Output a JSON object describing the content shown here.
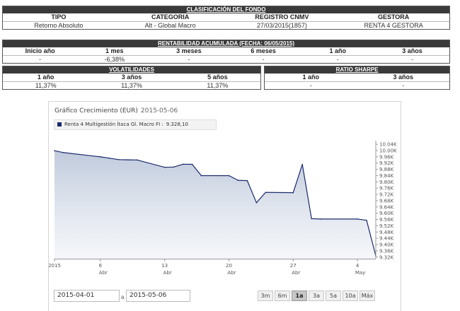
{
  "clasificacion": {
    "title": "CLASIFICACIÓN DEL FONDO",
    "headers": [
      "TIPO",
      "CATEGORIA",
      "REGISTRO CNMV",
      "GESTORA"
    ],
    "values": [
      "Retorno Absoluto",
      "Alt - Global Macro",
      "27/03/2015(1857)",
      "RENTA 4 GESTORA"
    ]
  },
  "rentabilidad": {
    "title": "RENTABILIDAD ACUMULADA (FECHA: 06/05/2015)",
    "headers": [
      "Inicio año",
      "1 mes",
      "3 meses",
      "6 meses",
      "1 año",
      "3 años"
    ],
    "values": [
      "-",
      "-6,38%",
      "-",
      "-",
      "-",
      "-"
    ]
  },
  "volatilidades": {
    "title": "VOLATILIDADES",
    "headers": [
      "1 año",
      "3 años",
      "5 años"
    ],
    "values": [
      "11,37%",
      "11,37%",
      "11,37%"
    ]
  },
  "sharpe": {
    "title": "RATIO SHARPE",
    "headers": [
      "1 año",
      "3 años"
    ],
    "values": [
      "-",
      "-"
    ]
  },
  "chart": {
    "title": "Gráfico Crecimiento (EUR)",
    "date": "2015-05-06",
    "legend_name": "Renta 4 Multigestión Ítaca Gl. Macro FI :",
    "legend_value": "9.328,10",
    "series_color": "#1a2a6c",
    "fill_color": "#b8c4d8"
  },
  "chart_data": {
    "type": "area",
    "x": [
      "2015-04-01",
      "2015-04-02",
      "2015-04-06",
      "2015-04-07",
      "2015-04-08",
      "2015-04-09",
      "2015-04-10",
      "2015-04-13",
      "2015-04-14",
      "2015-04-15",
      "2015-04-16",
      "2015-04-17",
      "2015-04-20",
      "2015-04-21",
      "2015-04-22",
      "2015-04-23",
      "2015-04-24",
      "2015-04-27",
      "2015-04-28",
      "2015-04-29",
      "2015-04-30",
      "2015-05-04",
      "2015-05-05",
      "2015-05-06"
    ],
    "y": [
      9999,
      9987,
      9960,
      9951,
      9942,
      9941,
      9940,
      9893,
      9895,
      9913,
      9912,
      9840,
      9840,
      9810,
      9808,
      9667,
      9733,
      9731,
      9912,
      9565,
      9563,
      9563,
      9555,
      9328
    ],
    "y_tick_labels": [
      "10.04K",
      "10.00K",
      "9.96K",
      "9.92K",
      "9.88K",
      "9.84K",
      "9.80K",
      "9.76K",
      "9.72K",
      "9.68K",
      "9.64K",
      "9.60K",
      "9.56K",
      "9.52K",
      "9.48K",
      "9.44K",
      "9.40K",
      "9.36K",
      "9.32K"
    ],
    "y_ticks": [
      10040,
      10000,
      9960,
      9920,
      9880,
      9840,
      9800,
      9760,
      9720,
      9680,
      9640,
      9600,
      9560,
      9520,
      9480,
      9440,
      9400,
      9360,
      9320
    ],
    "ylim": [
      9310,
      10045
    ],
    "x_ticks": [
      {
        "date": "2015-04-01",
        "label": "2015",
        "sub": ""
      },
      {
        "date": "2015-04-06",
        "label": "6",
        "sub": "Abr"
      },
      {
        "date": "2015-04-13",
        "label": "13",
        "sub": "Abr"
      },
      {
        "date": "2015-04-20",
        "label": "20",
        "sub": "Abr"
      },
      {
        "date": "2015-04-27",
        "label": "27",
        "sub": "Abr"
      },
      {
        "date": "2015-05-04",
        "label": "4",
        "sub": "May"
      }
    ],
    "xlim": [
      "2015-04-01",
      "2015-05-06"
    ],
    "grid": false,
    "legend_position": "top-left"
  },
  "date_range": {
    "from": "2015-04-01",
    "separator": "a",
    "to": "2015-05-06"
  },
  "range_buttons": [
    {
      "label": "3m",
      "active": false
    },
    {
      "label": "6m",
      "active": false
    },
    {
      "label": "1a",
      "active": true
    },
    {
      "label": "3a",
      "active": false
    },
    {
      "label": "5a",
      "active": false
    },
    {
      "label": "10a",
      "active": false
    },
    {
      "label": "Máx",
      "active": false
    }
  ]
}
